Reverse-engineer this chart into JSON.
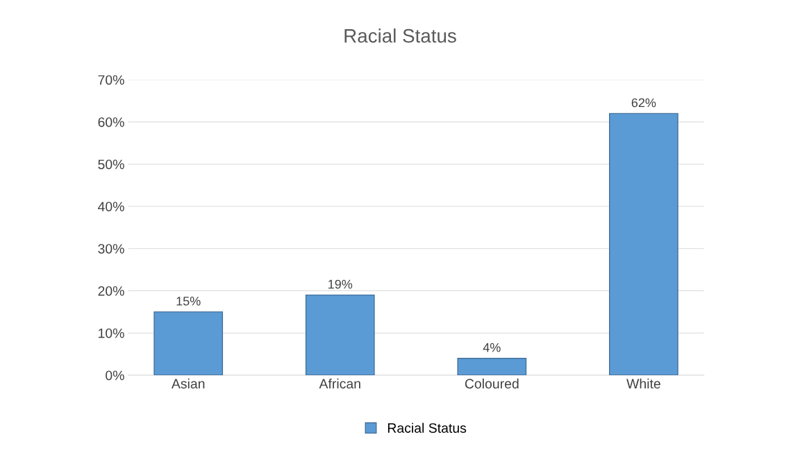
{
  "chart_data": {
    "type": "bar",
    "title": "Racial Status",
    "categories": [
      "Asian",
      "African",
      "Coloured",
      "White"
    ],
    "series": [
      {
        "name": "Racial Status",
        "color": "#5b9bd5",
        "values": [
          15,
          19,
          4,
          62
        ],
        "value_labels": [
          "15%",
          "19%",
          "4%",
          "62%"
        ]
      }
    ],
    "ylim": [
      0,
      70
    ],
    "yticks": [
      {
        "value": 0,
        "label": "0%"
      },
      {
        "value": 10,
        "label": "10%"
      },
      {
        "value": 20,
        "label": "20%"
      },
      {
        "value": 30,
        "label": "30%"
      },
      {
        "value": 40,
        "label": "40%"
      },
      {
        "value": 50,
        "label": "50%"
      },
      {
        "value": 60,
        "label": "60%"
      },
      {
        "value": 70,
        "label": "70%"
      }
    ],
    "grid": "y",
    "legend": "bottom"
  }
}
